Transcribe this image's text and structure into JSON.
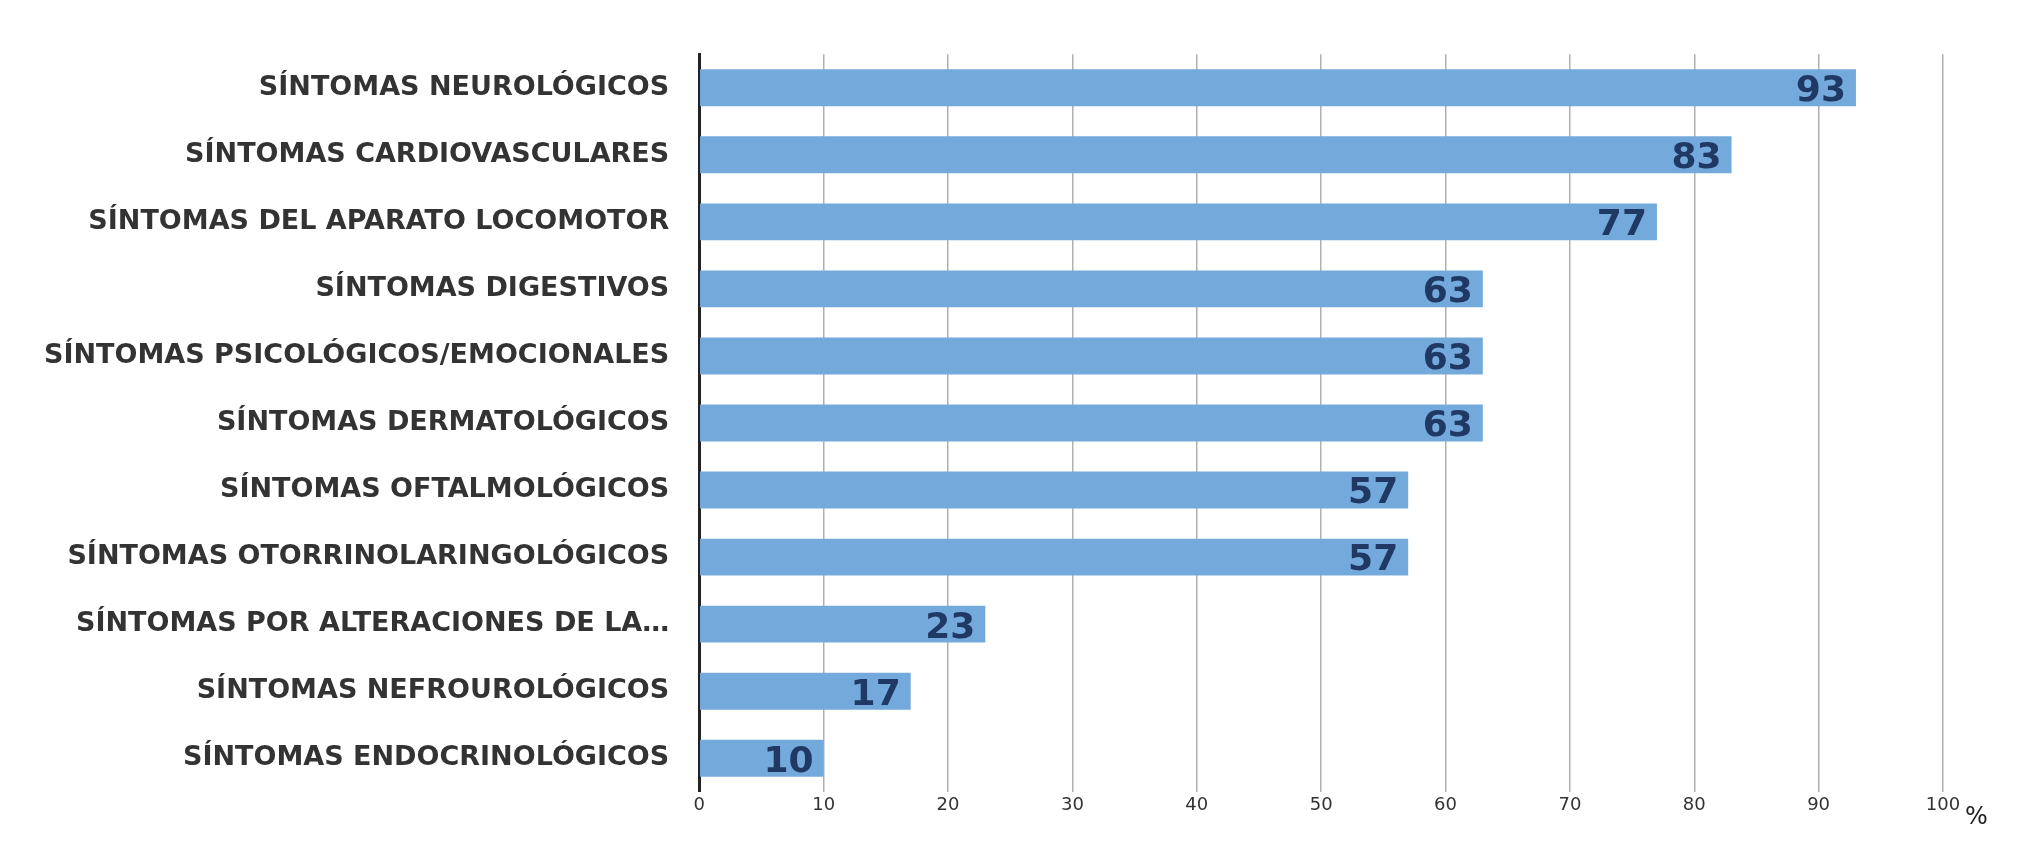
{
  "chart_data": {
    "type": "bar",
    "orientation": "horizontal",
    "categories": [
      "SÍNTOMAS NEUROLÓGICOS",
      "SÍNTOMAS CARDIOVASCULARES",
      "SÍNTOMAS DEL APARATO LOCOMOTOR",
      "SÍNTOMAS DIGESTIVOS",
      "SÍNTOMAS PSICOLÓGICOS/EMOCIONALES",
      "SÍNTOMAS DERMATOLÓGICOS",
      "SÍNTOMAS OFTALMOLÓGICOS",
      "SÍNTOMAS OTORRINOLARINGOLÓGICOS",
      "SÍNTOMAS POR ALTERACIONES DE LA…",
      "SÍNTOMAS NEFROUROLÓGICOS",
      "SÍNTOMAS ENDOCRINOLÓGICOS"
    ],
    "values": [
      93,
      83,
      77,
      63,
      63,
      63,
      57,
      57,
      23,
      17,
      10
    ],
    "color": "#74a9db",
    "xlabel": "%",
    "xlim": [
      0,
      100
    ],
    "xticks": [
      0,
      10,
      20,
      30,
      40,
      50,
      60,
      70,
      80,
      90,
      100
    ],
    "grid": "x",
    "data_labels": true
  }
}
